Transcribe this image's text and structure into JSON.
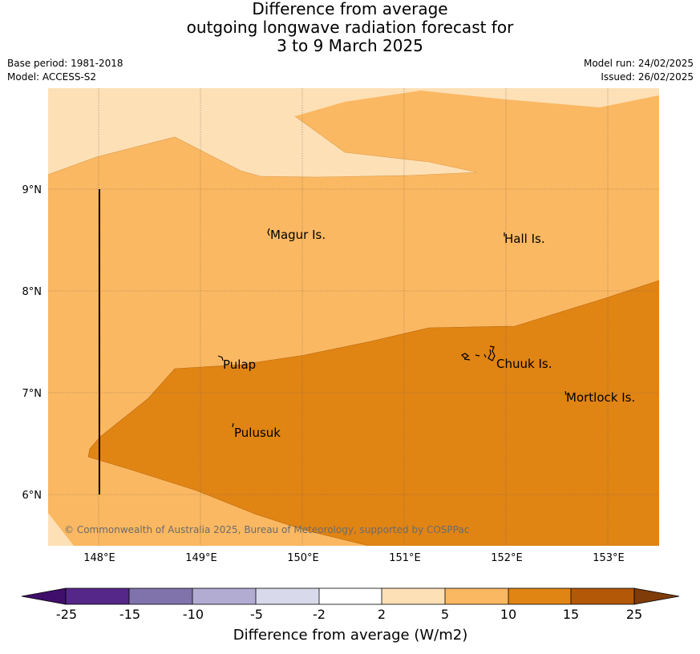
{
  "title": {
    "line1": "Difference from average",
    "line2": "outgoing longwave radiation forecast for",
    "line3": "3 to 9 March 2025"
  },
  "meta": {
    "base_period": "Base period: 1981-2018",
    "model": "Model: ACCESS-S2",
    "model_run": "Model run: 24/02/2025",
    "issued": "Issued: 26/02/2025"
  },
  "map": {
    "lat_labels": [
      "9°N",
      "8°N",
      "7°N",
      "6°N"
    ],
    "lon_labels": [
      "148°E",
      "149°E",
      "150°E",
      "151°E",
      "152°E",
      "153°E"
    ],
    "places": [
      "Magur Is.",
      "Hall Is.",
      "Pulap",
      "Chuuk Is.",
      "Mortlock Is.",
      "Pulusuk"
    ],
    "copyright": "© Commonwealth of Australia 2025, Bureau of Meteorology, supported by COSPPac",
    "colors": {
      "band_2_5": "#fde0b6",
      "band_5_10": "#fbb862",
      "band_10_15": "#e08414"
    }
  },
  "colorbar": {
    "labels": [
      "-25",
      "-15",
      "-10",
      "-5",
      "-2",
      "2",
      "5",
      "10",
      "15",
      "25"
    ],
    "colors": [
      "#3f0f6b",
      "#542788",
      "#8073ac",
      "#b2abd2",
      "#d8daeb",
      "#ffffff",
      "#fde0b6",
      "#fbb862",
      "#e08414",
      "#b35806",
      "#7f3b08"
    ],
    "title": "Difference from average (W/m2)"
  }
}
